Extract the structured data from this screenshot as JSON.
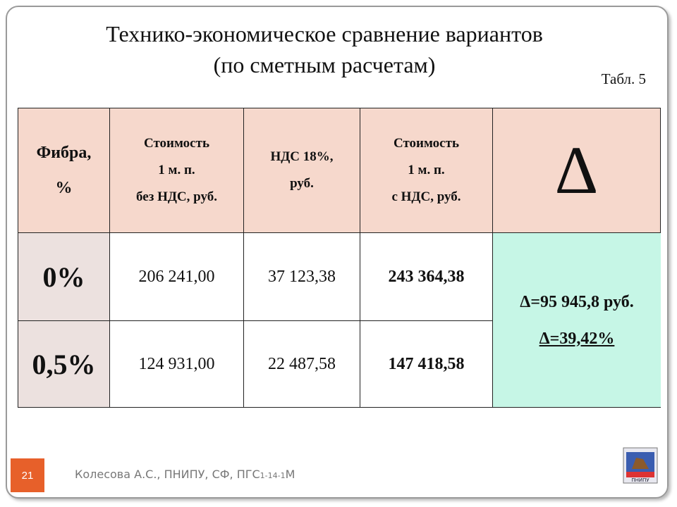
{
  "header": {
    "title": [
      "Технико-экономическое сравнение вариантов",
      "(по сметным расчетам)"
    ],
    "table_label": "Табл. 5"
  },
  "table": {
    "columns": [
      [
        "Фибра,",
        "%"
      ],
      [
        "Стоимость",
        "1 м. п.",
        "без НДС, руб."
      ],
      [
        "НДС 18%,",
        "руб."
      ],
      [
        "Стоимость",
        "1 м. п.",
        "с НДС, руб."
      ],
      [
        "Δ"
      ]
    ],
    "rows": [
      [
        "0%",
        "206 241,00",
        "37 123,38",
        "243 364,38"
      ],
      [
        "0,5%",
        "124 931,00",
        "22 487,58",
        "147 418,58"
      ]
    ],
    "delta": [
      "Δ=95 945,8 руб.",
      "Δ=39,42%"
    ]
  },
  "footer": {
    "page_number": "21",
    "author": "Колесова А.С., ПНИПУ, СФ, ПГС",
    "group": "1-14-1",
    "suffix": "М",
    "logo_text": "ПНИПУ"
  }
}
